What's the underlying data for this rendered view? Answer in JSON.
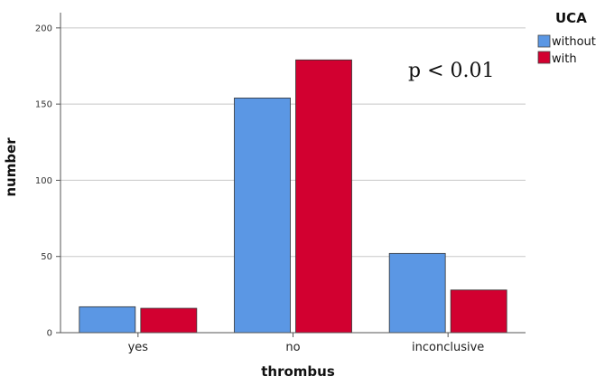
{
  "chart_data": {
    "type": "bar",
    "title": "",
    "xlabel": "thrombus",
    "ylabel": "number",
    "categories": [
      "yes",
      "no",
      "inconclusive"
    ],
    "series": [
      {
        "name": "without",
        "values": [
          17,
          154,
          52
        ]
      },
      {
        "name": "with",
        "values": [
          16,
          179,
          28
        ]
      }
    ],
    "ylim": [
      0,
      210
    ],
    "yticks": [
      0,
      50,
      100,
      150,
      200
    ],
    "grid": true,
    "legend": {
      "title": "UCA",
      "position": "top-right"
    },
    "annotation": "p < 0.01"
  },
  "colors": {
    "without": "#5b97e4",
    "with": "#d20030",
    "grid": "#c8c8c8",
    "axis": "#555555"
  }
}
